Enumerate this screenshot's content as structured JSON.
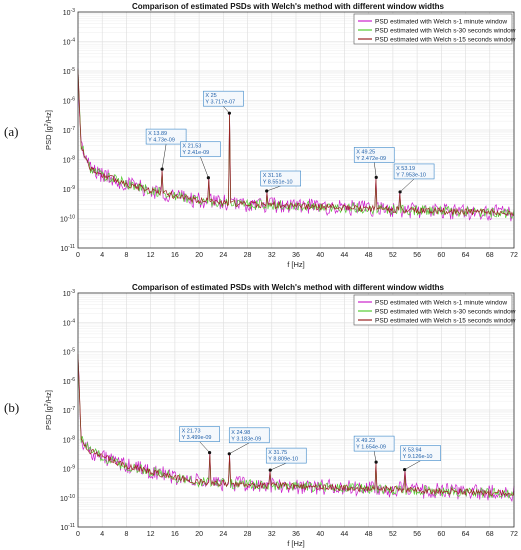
{
  "figure": {
    "label_a": "(a)",
    "label_b": "(b)"
  },
  "colors": {
    "series_1min": "#cc22cc",
    "series_30s": "#55cc33",
    "series_15s": "#992222",
    "grid": "#dddddd",
    "datatip_border": "#3a86c8",
    "datatip_bg": "#f4f8fc"
  },
  "chart_data": [
    {
      "type": "line",
      "title": "Comparison of estimated PSDs with Welch's method with different window widths",
      "xlabel": "f [Hz]",
      "ylabel_parts": [
        "PSD [g",
        "2",
        "/Hz]"
      ],
      "xlim": [
        0,
        72
      ],
      "ylim": [
        1e-11,
        0.001
      ],
      "yscale": "log",
      "grid": true,
      "legend_location": "top-right",
      "xticks": [
        "0",
        "4",
        "8",
        "12",
        "16",
        "20",
        "24",
        "28",
        "32",
        "36",
        "40",
        "44",
        "48",
        "52",
        "56",
        "60",
        "64",
        "68",
        "72"
      ],
      "yticks": [
        {
          "base": "10",
          "exp": "-3"
        },
        {
          "base": "10",
          "exp": "-4"
        },
        {
          "base": "10",
          "exp": "-5"
        },
        {
          "base": "10",
          "exp": "-6"
        },
        {
          "base": "10",
          "exp": "-7"
        },
        {
          "base": "10",
          "exp": "-8"
        },
        {
          "base": "10",
          "exp": "-9"
        },
        {
          "base": "10",
          "exp": "-10"
        },
        {
          "base": "10",
          "exp": "-11"
        }
      ],
      "series": [
        {
          "name": "PSD estimated with Welch s-1 minute window"
        },
        {
          "name": "PSD estimated with Welch s-30 seconds window"
        },
        {
          "name": "PSD estimated with Welch s-15 seconds window"
        }
      ],
      "noise_floor": [
        [
          0,
          1e-05
        ],
        [
          0.5,
          3e-08
        ],
        [
          2,
          5e-09
        ],
        [
          4,
          3e-09
        ],
        [
          8,
          1.5e-09
        ],
        [
          12,
          9e-10
        ],
        [
          16,
          6e-10
        ],
        [
          20,
          4e-10
        ],
        [
          28,
          3e-10
        ],
        [
          40,
          2.5e-10
        ],
        [
          52,
          2e-10
        ],
        [
          72,
          1.5e-10
        ]
      ],
      "peaks": [
        {
          "x": 13.89,
          "y": 4.73e-09,
          "label_x": "X 13.89",
          "label_y": "Y 4.73e-09"
        },
        {
          "x": 21.53,
          "y": 2.41e-09,
          "label_x": "X 21.53",
          "label_y": "Y 2.41e-09"
        },
        {
          "x": 25,
          "y": 3.717e-07,
          "label_x": "X 25",
          "label_y": "Y 3.717e-07"
        },
        {
          "x": 31.16,
          "y": 8.551e-10,
          "label_x": "X 31.16",
          "label_y": "Y 8.551e-10"
        },
        {
          "x": 49.25,
          "y": 2.472e-09,
          "label_x": "X 49.25",
          "label_y": "Y 2.472e-09"
        },
        {
          "x": 53.19,
          "y": 7.953e-10,
          "label_x": "X 53.19",
          "label_y": "Y 7.953e-10"
        }
      ]
    },
    {
      "type": "line",
      "title": "Comparison of estimated PSDs with Welch's method with different window widths",
      "xlabel": "f [Hz]",
      "ylabel_parts": [
        "PSD [g",
        "2",
        "/Hz]"
      ],
      "xlim": [
        0,
        72
      ],
      "ylim": [
        1e-11,
        0.001
      ],
      "yscale": "log",
      "grid": true,
      "legend_location": "top-right",
      "xticks": [
        "0",
        "4",
        "8",
        "12",
        "16",
        "20",
        "24",
        "28",
        "32",
        "36",
        "40",
        "44",
        "48",
        "52",
        "56",
        "60",
        "64",
        "68",
        "72"
      ],
      "yticks": [
        {
          "base": "10",
          "exp": "-3"
        },
        {
          "base": "10",
          "exp": "-4"
        },
        {
          "base": "10",
          "exp": "-5"
        },
        {
          "base": "10",
          "exp": "-6"
        },
        {
          "base": "10",
          "exp": "-7"
        },
        {
          "base": "10",
          "exp": "-8"
        },
        {
          "base": "10",
          "exp": "-9"
        },
        {
          "base": "10",
          "exp": "-10"
        },
        {
          "base": "10",
          "exp": "-11"
        }
      ],
      "series": [
        {
          "name": "PSD estimated with Welch s-1 minute window"
        },
        {
          "name": "PSD estimated with Welch s-30 seconds window"
        },
        {
          "name": "PSD estimated with Welch s-15 seconds window"
        }
      ],
      "noise_floor": [
        [
          0,
          1e-05
        ],
        [
          0.5,
          1e-08
        ],
        [
          2,
          4e-09
        ],
        [
          4,
          2.5e-09
        ],
        [
          8,
          1.2e-09
        ],
        [
          12,
          8e-10
        ],
        [
          16,
          5e-10
        ],
        [
          20,
          3.5e-10
        ],
        [
          28,
          2.8e-10
        ],
        [
          40,
          2.3e-10
        ],
        [
          52,
          1.9e-10
        ],
        [
          72,
          1.4e-10
        ]
      ],
      "peaks": [
        {
          "x": 21.73,
          "y": 3.499e-09,
          "label_x": "X 21.73",
          "label_y": "Y 3.499e-09"
        },
        {
          "x": 24.98,
          "y": 3.183e-09,
          "label_x": "X 24.98",
          "label_y": "Y 3.183e-09"
        },
        {
          "x": 31.75,
          "y": 8.809e-10,
          "label_x": "X 31.75",
          "label_y": "Y 8.809e-10"
        },
        {
          "x": 49.23,
          "y": 1.654e-09,
          "label_x": "X 49.23",
          "label_y": "Y 1.654e-09"
        },
        {
          "x": 53.94,
          "y": 9.126e-10,
          "label_x": "X 53.94",
          "label_y": "Y 9.126e-10"
        }
      ]
    }
  ]
}
